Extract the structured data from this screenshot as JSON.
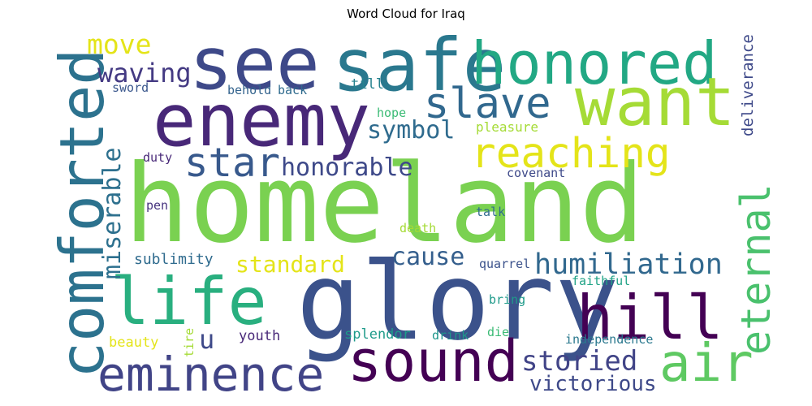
{
  "title": "Word Cloud for Iraq",
  "words": [
    {
      "text": "homeland",
      "color": "#7ad151"
    },
    {
      "text": "glory",
      "color": "#3b528b"
    },
    {
      "text": "enemy",
      "color": "#482878"
    },
    {
      "text": "see",
      "color": "#3e4989"
    },
    {
      "text": "safe",
      "color": "#2a788e"
    },
    {
      "text": "honored",
      "color": "#22a884"
    },
    {
      "text": "want",
      "color": "#a5db36"
    },
    {
      "text": "comforted",
      "color": "#2c728e"
    },
    {
      "text": "life",
      "color": "#29af7f"
    },
    {
      "text": "sound",
      "color": "#440154"
    },
    {
      "text": "hill",
      "color": "#440154"
    },
    {
      "text": "air",
      "color": "#5ec962"
    },
    {
      "text": "eminence",
      "color": "#414487"
    },
    {
      "text": "eternal",
      "color": "#4ac16d"
    },
    {
      "text": "reaching",
      "color": "#e4e419"
    },
    {
      "text": "slave",
      "color": "#31688e"
    },
    {
      "text": "star",
      "color": "#38598c"
    },
    {
      "text": "move",
      "color": "#e4e419"
    },
    {
      "text": "waving",
      "color": "#443a83"
    },
    {
      "text": "symbol",
      "color": "#2f6b8e"
    },
    {
      "text": "honorable",
      "color": "#3e4989"
    },
    {
      "text": "miserable",
      "color": "#2d708e"
    },
    {
      "text": "humiliation",
      "color": "#31688e"
    },
    {
      "text": "cause",
      "color": "#355f8d"
    },
    {
      "text": "standard",
      "color": "#e4e419"
    },
    {
      "text": "storied",
      "color": "#414487"
    },
    {
      "text": "victorious",
      "color": "#3e4989"
    },
    {
      "text": "deliverance",
      "color": "#3e4989"
    },
    {
      "text": "u",
      "color": "#3e4989"
    },
    {
      "text": "sword",
      "color": "#39568c"
    },
    {
      "text": "behold",
      "color": "#33638d"
    },
    {
      "text": "back",
      "color": "#2f6b8e"
    },
    {
      "text": "till",
      "color": "#26828e"
    },
    {
      "text": "hope",
      "color": "#3bbb75"
    },
    {
      "text": "pleasure",
      "color": "#a5db36"
    },
    {
      "text": "duty",
      "color": "#482878"
    },
    {
      "text": "covenant",
      "color": "#3e4989"
    },
    {
      "text": "pen",
      "color": "#46337e"
    },
    {
      "text": "talk",
      "color": "#2f6b8e"
    },
    {
      "text": "death",
      "color": "#a5db36"
    },
    {
      "text": "sublimity",
      "color": "#2f6b8e"
    },
    {
      "text": "quarrel",
      "color": "#3b528b"
    },
    {
      "text": "faithful",
      "color": "#20a386"
    },
    {
      "text": "bring",
      "color": "#1f9a8a"
    },
    {
      "text": "tire",
      "color": "#a5db36"
    },
    {
      "text": "beauty",
      "color": "#e4e419"
    },
    {
      "text": "youth",
      "color": "#482878"
    },
    {
      "text": "splendor",
      "color": "#1e9b8a"
    },
    {
      "text": "drink",
      "color": "#1f968b"
    },
    {
      "text": "die",
      "color": "#3bbb75"
    },
    {
      "text": "independence",
      "color": "#2a788e"
    }
  ]
}
